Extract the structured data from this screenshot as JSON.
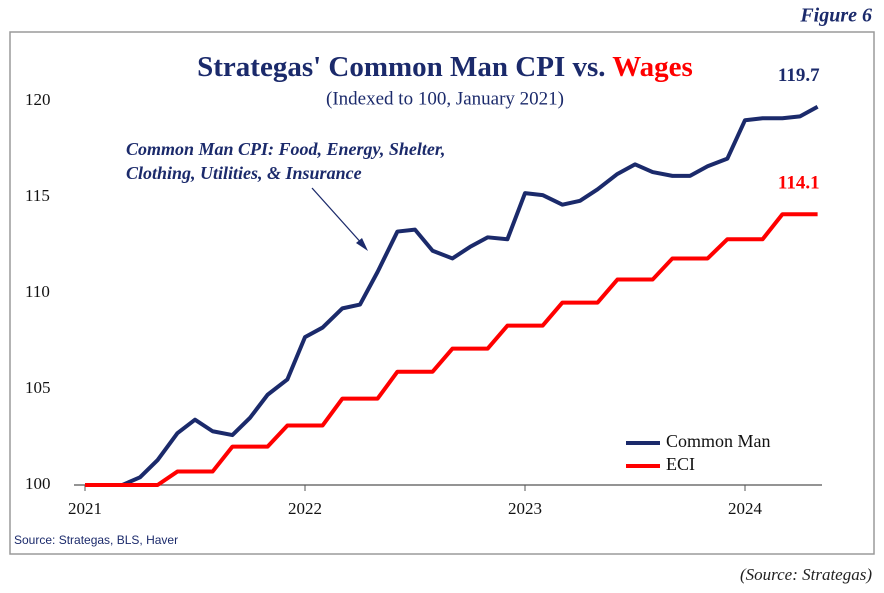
{
  "figure_label": "Figure 6",
  "caption": "(Source: Strategas)",
  "chart_data": {
    "type": "line",
    "title": "Strategas' Common Man CPI vs.",
    "title_highlight": "Wages",
    "subtitle": "(Indexed to 100, January 2021)",
    "annotation": [
      "Common Man CPI: Food, Energy, Shelter,",
      "Clothing, Utilities, & Insurance"
    ],
    "source": "Source: Strategas, BLS, Haver",
    "x": [
      2021,
      2021.08,
      2021.17,
      2021.25,
      2021.33,
      2021.42,
      2021.5,
      2021.58,
      2021.67,
      2021.75,
      2021.83,
      2021.92,
      2022,
      2022.08,
      2022.17,
      2022.25,
      2022.33,
      2022.42,
      2022.5,
      2022.58,
      2022.67,
      2022.75,
      2022.83,
      2022.92,
      2023,
      2023.08,
      2023.17,
      2023.25,
      2023.33,
      2023.42,
      2023.5,
      2023.58,
      2023.67,
      2023.75,
      2023.83,
      2023.92,
      2024,
      2024.08,
      2024.17,
      2024.25,
      2024.33
    ],
    "xlim": [
      2020.95,
      2024.35
    ],
    "xticks": [
      2021,
      2022,
      2023,
      2024
    ],
    "ylim": [
      100,
      120
    ],
    "yticks": [
      100,
      105,
      110,
      115,
      120
    ],
    "grid": false,
    "legend": "lower right",
    "series": [
      {
        "name": "Common Man",
        "color": "#1b2a6b",
        "values": [
          100,
          100,
          100,
          100.4,
          101.3,
          102.7,
          103.4,
          102.8,
          102.6,
          103.5,
          104.7,
          105.5,
          107.7,
          108.2,
          109.2,
          109.4,
          111.1,
          113.2,
          113.3,
          112.2,
          111.8,
          112.4,
          112.9,
          112.8,
          115.2,
          115.1,
          114.6,
          114.8,
          115.4,
          116.2,
          116.7,
          116.3,
          116.1,
          116.1,
          116.6,
          117.0,
          119.0,
          119.1,
          119.1,
          119.2,
          119.7
        ]
      },
      {
        "name": "ECI",
        "color": "#ff0000",
        "values": [
          100,
          100,
          100,
          100,
          100,
          100.7,
          100.7,
          100.7,
          102.0,
          102.0,
          102.0,
          103.1,
          103.1,
          103.1,
          104.5,
          104.5,
          104.5,
          105.9,
          105.9,
          105.9,
          107.1,
          107.1,
          107.1,
          108.3,
          108.3,
          108.3,
          109.5,
          109.5,
          109.5,
          110.7,
          110.7,
          110.7,
          111.8,
          111.8,
          111.8,
          112.8,
          112.8,
          112.8,
          114.1,
          114.1,
          114.1
        ]
      }
    ]
  }
}
